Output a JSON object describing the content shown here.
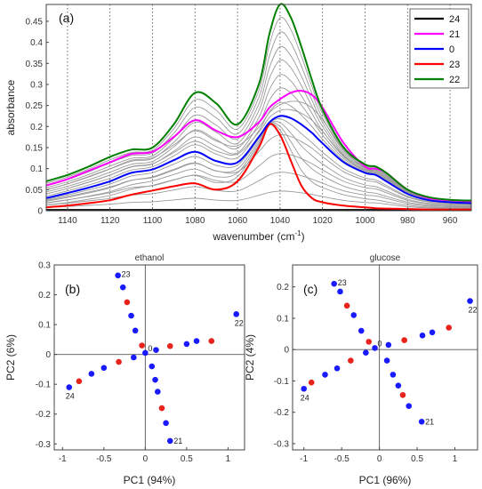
{
  "chart_data": [
    {
      "type": "line",
      "panel_label": "(a)",
      "xlabel": "wavenumber (cm",
      "xlabel_sup": "-1",
      "xlabel_end": ")",
      "ylabel": "absorbance",
      "xlim": [
        1150,
        950
      ],
      "ylim": [
        0,
        0.49
      ],
      "xticks": [
        1140,
        1120,
        1100,
        1080,
        1060,
        1040,
        1020,
        1000,
        980,
        960
      ],
      "yticks": [
        0,
        0.05,
        0.1,
        0.15,
        0.2,
        0.25,
        0.3,
        0.35,
        0.4,
        0.45
      ],
      "ytick_labels": [
        "0",
        "0.05",
        "0.1",
        "0.15",
        "0.2",
        "0.25",
        "0.3",
        "0.35",
        "0.4",
        "0.45"
      ],
      "grid": "vertical dotted lines at x ticks",
      "legend_position": "top-right",
      "x": [
        1150,
        1140,
        1130,
        1120,
        1110,
        1100,
        1090,
        1080,
        1070,
        1060,
        1050,
        1045,
        1040,
        1035,
        1030,
        1025,
        1020,
        1010,
        1000,
        995,
        990,
        980,
        970,
        960,
        950
      ],
      "series": [
        {
          "name": "24",
          "color": "#000000",
          "values": [
            0.002,
            0.002,
            0.002,
            0.002,
            0.002,
            0.002,
            0.002,
            0.002,
            0.002,
            0.002,
            0.002,
            0.002,
            0.002,
            0.002,
            0.002,
            0.002,
            0.002,
            0.002,
            0.002,
            0.002,
            0.002,
            0.002,
            0.002,
            0.002,
            0.002
          ]
        },
        {
          "name": "21",
          "color": "#ff00ff",
          "values": [
            0.06,
            0.075,
            0.095,
            0.115,
            0.135,
            0.14,
            0.175,
            0.215,
            0.19,
            0.175,
            0.21,
            0.245,
            0.265,
            0.28,
            0.285,
            0.275,
            0.245,
            0.16,
            0.105,
            0.1,
            0.09,
            0.05,
            0.03,
            0.025,
            0.022
          ]
        },
        {
          "name": "0",
          "color": "#0000ff",
          "values": [
            0.03,
            0.042,
            0.055,
            0.07,
            0.09,
            0.098,
            0.12,
            0.14,
            0.118,
            0.115,
            0.175,
            0.21,
            0.225,
            0.22,
            0.205,
            0.185,
            0.16,
            0.115,
            0.09,
            0.085,
            0.07,
            0.04,
            0.025,
            0.02,
            0.018
          ]
        },
        {
          "name": "23",
          "color": "#ff0000",
          "values": [
            0.008,
            0.012,
            0.018,
            0.025,
            0.038,
            0.048,
            0.058,
            0.065,
            0.05,
            0.07,
            0.15,
            0.205,
            0.18,
            0.12,
            0.06,
            0.03,
            0.02,
            0.012,
            0.008,
            0.006,
            0.005,
            0.004,
            0.003,
            0.003,
            0.003
          ]
        },
        {
          "name": "22",
          "color": "#008000",
          "values": [
            0.07,
            0.085,
            0.105,
            0.128,
            0.145,
            0.15,
            0.205,
            0.28,
            0.255,
            0.205,
            0.3,
            0.42,
            0.49,
            0.46,
            0.39,
            0.31,
            0.24,
            0.15,
            0.11,
            0.105,
            0.09,
            0.05,
            0.032,
            0.026,
            0.024
          ]
        }
      ]
    },
    {
      "type": "scatter",
      "title": "ethanol",
      "panel_label": "(b)",
      "xlabel": "PC1 (94%)",
      "ylabel": "PC2 (6%)",
      "xlim": [
        -1.1,
        1.2
      ],
      "ylim": [
        -0.32,
        0.3
      ],
      "xticks": [
        -1,
        -0.5,
        0,
        0.5,
        1
      ],
      "xtick_labels": [
        "-1",
        "-0.5",
        "0",
        "0.5",
        "1"
      ],
      "yticks": [
        -0.3,
        -0.2,
        -0.1,
        0,
        0.1,
        0.2,
        0.3
      ],
      "ytick_labels": [
        "-0.3",
        "-0.2",
        "-0.1",
        "0",
        "0.1",
        "0.2",
        "0.3"
      ],
      "colors": {
        "blue": "#1a1aff",
        "red": "#e8231c"
      },
      "points": [
        {
          "x": -0.33,
          "y": 0.265,
          "c": "blue",
          "label": "23"
        },
        {
          "x": -0.27,
          "y": 0.225,
          "c": "blue"
        },
        {
          "x": -0.22,
          "y": 0.175,
          "c": "red"
        },
        {
          "x": -0.17,
          "y": 0.13,
          "c": "blue"
        },
        {
          "x": -0.12,
          "y": 0.08,
          "c": "blue"
        },
        {
          "x": -0.04,
          "y": 0.03,
          "c": "red"
        },
        {
          "x": 0.0,
          "y": 0.005,
          "c": "blue",
          "label": "0"
        },
        {
          "x": -0.92,
          "y": -0.11,
          "c": "blue",
          "label": "24"
        },
        {
          "x": -0.8,
          "y": -0.09,
          "c": "red"
        },
        {
          "x": -0.65,
          "y": -0.065,
          "c": "blue"
        },
        {
          "x": -0.5,
          "y": -0.045,
          "c": "blue"
        },
        {
          "x": -0.32,
          "y": -0.025,
          "c": "red"
        },
        {
          "x": -0.14,
          "y": -0.01,
          "c": "blue"
        },
        {
          "x": 0.13,
          "y": 0.015,
          "c": "blue"
        },
        {
          "x": 0.3,
          "y": 0.028,
          "c": "red"
        },
        {
          "x": 0.5,
          "y": 0.035,
          "c": "blue"
        },
        {
          "x": 0.62,
          "y": 0.045,
          "c": "blue"
        },
        {
          "x": 0.8,
          "y": 0.045,
          "c": "red"
        },
        {
          "x": 1.1,
          "y": 0.135,
          "c": "blue",
          "label": "22"
        },
        {
          "x": 0.08,
          "y": -0.04,
          "c": "blue"
        },
        {
          "x": 0.12,
          "y": -0.085,
          "c": "blue"
        },
        {
          "x": 0.15,
          "y": -0.125,
          "c": "blue"
        },
        {
          "x": 0.2,
          "y": -0.18,
          "c": "red"
        },
        {
          "x": 0.25,
          "y": -0.23,
          "c": "blue"
        },
        {
          "x": 0.3,
          "y": -0.29,
          "c": "blue",
          "label": "21"
        }
      ]
    },
    {
      "type": "scatter",
      "title": "glucose",
      "panel_label": "(c)",
      "xlabel": "PC1 (96%)",
      "ylabel": "PC2 (4%)",
      "xlim": [
        -1.15,
        1.3
      ],
      "ylim": [
        -0.32,
        0.27
      ],
      "xticks": [
        -1,
        -0.5,
        0,
        0.5,
        1
      ],
      "xtick_labels": [
        "-1",
        "-0.5",
        "0",
        "0.5",
        "1"
      ],
      "yticks": [
        -0.3,
        -0.2,
        -0.1,
        0,
        0.1,
        0.2
      ],
      "ytick_labels": [
        "-0.3",
        "-0.2",
        "-0.1",
        "0",
        "0.1",
        "0.2"
      ],
      "colors": {
        "blue": "#1a1aff",
        "red": "#e8231c"
      },
      "points": [
        {
          "x": -0.6,
          "y": 0.21,
          "c": "blue",
          "label": "23"
        },
        {
          "x": -0.52,
          "y": 0.185,
          "c": "blue"
        },
        {
          "x": -0.43,
          "y": 0.14,
          "c": "red"
        },
        {
          "x": -0.34,
          "y": 0.11,
          "c": "blue"
        },
        {
          "x": -0.24,
          "y": 0.06,
          "c": "blue"
        },
        {
          "x": -0.14,
          "y": 0.025,
          "c": "red"
        },
        {
          "x": -0.06,
          "y": 0.005,
          "c": "blue",
          "label": "0"
        },
        {
          "x": -1.0,
          "y": -0.125,
          "c": "blue",
          "label": "24"
        },
        {
          "x": -0.9,
          "y": -0.105,
          "c": "red"
        },
        {
          "x": -0.72,
          "y": -0.08,
          "c": "blue"
        },
        {
          "x": -0.56,
          "y": -0.06,
          "c": "blue"
        },
        {
          "x": -0.38,
          "y": -0.035,
          "c": "red"
        },
        {
          "x": -0.18,
          "y": -0.01,
          "c": "blue"
        },
        {
          "x": 0.12,
          "y": 0.015,
          "c": "blue"
        },
        {
          "x": 0.33,
          "y": 0.03,
          "c": "red"
        },
        {
          "x": 0.57,
          "y": 0.045,
          "c": "blue"
        },
        {
          "x": 0.7,
          "y": 0.055,
          "c": "blue"
        },
        {
          "x": 0.92,
          "y": 0.07,
          "c": "red"
        },
        {
          "x": 1.2,
          "y": 0.155,
          "c": "blue",
          "label": "22"
        },
        {
          "x": 0.1,
          "y": -0.035,
          "c": "blue"
        },
        {
          "x": 0.18,
          "y": -0.08,
          "c": "blue"
        },
        {
          "x": 0.25,
          "y": -0.115,
          "c": "blue"
        },
        {
          "x": 0.31,
          "y": -0.145,
          "c": "red"
        },
        {
          "x": 0.39,
          "y": -0.18,
          "c": "blue"
        },
        {
          "x": 0.56,
          "y": -0.23,
          "c": "blue",
          "label": "21"
        }
      ]
    }
  ]
}
